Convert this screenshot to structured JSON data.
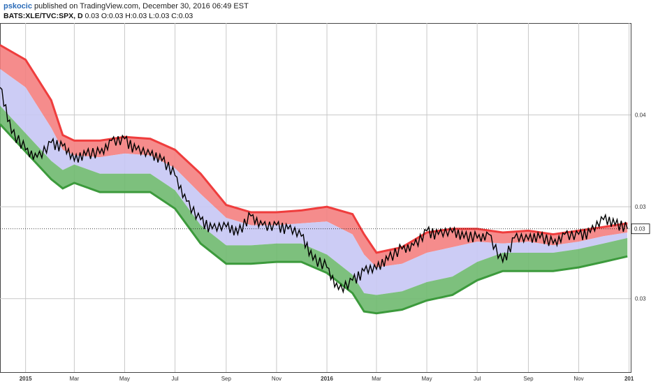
{
  "header": {
    "username": "pskocic",
    "published_text": "published on TradingView.com, December 30, 2016 06:49 EST",
    "symbol": "BATS:XLE/TVC:SPX, D",
    "ohlc": "0.03 O:0.03 H:0.03 L:0.03 C:0.03"
  },
  "chart_data": {
    "type": "line",
    "title": "BATS:XLE/TVC:SPX, D",
    "xlabel": "",
    "ylabel": "",
    "x_tick_labels": [
      "2015",
      "Mar",
      "May",
      "Jul",
      "Sep",
      "Nov",
      "2016",
      "Mar",
      "May",
      "Jul",
      "Sep",
      "Nov",
      "201"
    ],
    "y_tick_labels": [
      "0.04",
      "0.03",
      "0.03"
    ],
    "last_value_label": "0.03",
    "ylim": [
      0.0265,
      0.0455
    ],
    "colors": {
      "upper_band_fill": "#f47f7f",
      "upper_band_line": "#ef3d3d",
      "middle_fill": "#c6c6f4",
      "lower_band_fill": "#6fb96f",
      "lower_band_line": "#3c9a3c",
      "price_line": "#000000",
      "grid": "#c8c8c8"
    },
    "series": [
      {
        "name": "",
        "role": "upper",
        "x": [
          "2014-12-01",
          "2015-01-01",
          "2015-02-01",
          "2015-02-15",
          "2015-03-01",
          "2015-04-01",
          "2015-05-01",
          "2015-06-01",
          "2015-07-01",
          "2015-08-01",
          "2015-09-01",
          "2015-10-01",
          "2015-11-01",
          "2015-12-01",
          "2016-01-01",
          "2016-02-01",
          "2016-02-15",
          "2016-03-01",
          "2016-04-01",
          "2016-05-01",
          "2016-06-01",
          "2016-07-01",
          "2016-08-01",
          "2016-09-01",
          "2016-10-01",
          "2016-11-01",
          "2016-12-01",
          "2016-12-30"
        ],
        "values": [
          0.0443,
          0.0435,
          0.0413,
          0.0394,
          0.0391,
          0.0391,
          0.0393,
          0.0392,
          0.0386,
          0.0373,
          0.0356,
          0.0352,
          0.0352,
          0.0353,
          0.0355,
          0.0351,
          0.034,
          0.033,
          0.0333,
          0.0341,
          0.0343,
          0.0343,
          0.0341,
          0.0342,
          0.034,
          0.0342,
          0.0344,
          0.0346
        ]
      },
      {
        "name": "",
        "role": "middle",
        "x": [
          "2014-12-01",
          "2015-01-01",
          "2015-02-01",
          "2015-02-15",
          "2015-03-01",
          "2015-04-01",
          "2015-05-01",
          "2015-06-01",
          "2015-07-01",
          "2015-08-01",
          "2015-09-01",
          "2015-10-01",
          "2015-11-01",
          "2015-12-01",
          "2016-01-01",
          "2016-02-01",
          "2016-02-15",
          "2016-03-01",
          "2016-04-01",
          "2016-05-01",
          "2016-06-01",
          "2016-07-01",
          "2016-08-01",
          "2016-09-01",
          "2016-10-01",
          "2016-11-01",
          "2016-12-01",
          "2016-12-30"
        ],
        "values": [
          0.043,
          0.042,
          0.0398,
          0.0386,
          0.0383,
          0.0382,
          0.0384,
          0.0383,
          0.0376,
          0.0362,
          0.0349,
          0.0345,
          0.0345,
          0.0346,
          0.0347,
          0.034,
          0.0329,
          0.0322,
          0.0324,
          0.033,
          0.0333,
          0.0336,
          0.0335,
          0.0336,
          0.0334,
          0.0336,
          0.0339,
          0.0341
        ]
      },
      {
        "name": "",
        "role": "lower",
        "x": [
          "2014-12-01",
          "2015-01-01",
          "2015-02-01",
          "2015-02-15",
          "2015-03-01",
          "2015-04-01",
          "2015-05-01",
          "2015-06-01",
          "2015-07-01",
          "2015-08-01",
          "2015-09-01",
          "2015-10-01",
          "2015-11-01",
          "2015-12-01",
          "2016-01-01",
          "2016-02-01",
          "2016-02-15",
          "2016-03-01",
          "2016-04-01",
          "2016-05-01",
          "2016-06-01",
          "2016-07-01",
          "2016-08-01",
          "2016-09-01",
          "2016-10-01",
          "2016-11-01",
          "2016-12-01",
          "2016-12-30"
        ],
        "values": [
          0.041,
          0.0395,
          0.038,
          0.0375,
          0.0378,
          0.0373,
          0.0373,
          0.0373,
          0.0364,
          0.0345,
          0.0334,
          0.0334,
          0.0335,
          0.0335,
          0.0329,
          0.0318,
          0.0308,
          0.0307,
          0.0309,
          0.0314,
          0.0317,
          0.0325,
          0.033,
          0.033,
          0.033,
          0.0332,
          0.0335,
          0.0338
        ]
      },
      {
        "name": "",
        "role": "price",
        "x": [
          "2014-12-01",
          "2014-12-15",
          "2015-01-01",
          "2015-01-15",
          "2015-02-01",
          "2015-02-15",
          "2015-03-01",
          "2015-03-15",
          "2015-04-01",
          "2015-04-15",
          "2015-05-01",
          "2015-05-15",
          "2015-06-01",
          "2015-06-15",
          "2015-07-01",
          "2015-07-15",
          "2015-08-01",
          "2015-08-15",
          "2015-09-01",
          "2015-09-15",
          "2015-10-01",
          "2015-10-15",
          "2015-11-01",
          "2015-11-15",
          "2015-12-01",
          "2015-12-15",
          "2016-01-01",
          "2016-01-15",
          "2016-02-01",
          "2016-02-15",
          "2016-03-01",
          "2016-03-15",
          "2016-04-01",
          "2016-04-15",
          "2016-05-01",
          "2016-05-15",
          "2016-06-01",
          "2016-06-15",
          "2016-07-01",
          "2016-07-15",
          "2016-08-01",
          "2016-08-15",
          "2016-09-01",
          "2016-09-15",
          "2016-10-01",
          "2016-10-15",
          "2016-11-01",
          "2016-11-15",
          "2016-12-01",
          "2016-12-15",
          "2016-12-30"
        ],
        "values": [
          0.042,
          0.0395,
          0.0386,
          0.0382,
          0.039,
          0.0388,
          0.038,
          0.0383,
          0.0384,
          0.0391,
          0.0392,
          0.0386,
          0.0383,
          0.038,
          0.0372,
          0.0358,
          0.0348,
          0.0343,
          0.0344,
          0.034,
          0.035,
          0.0345,
          0.0345,
          0.0343,
          0.0339,
          0.0326,
          0.0322,
          0.031,
          0.0315,
          0.032,
          0.0321,
          0.0326,
          0.0332,
          0.0334,
          0.0342,
          0.034,
          0.0341,
          0.0338,
          0.0338,
          0.034,
          0.0325,
          0.0338,
          0.0337,
          0.0338,
          0.0335,
          0.034,
          0.034,
          0.0341,
          0.0348,
          0.0345,
          0.0343
        ]
      }
    ]
  }
}
